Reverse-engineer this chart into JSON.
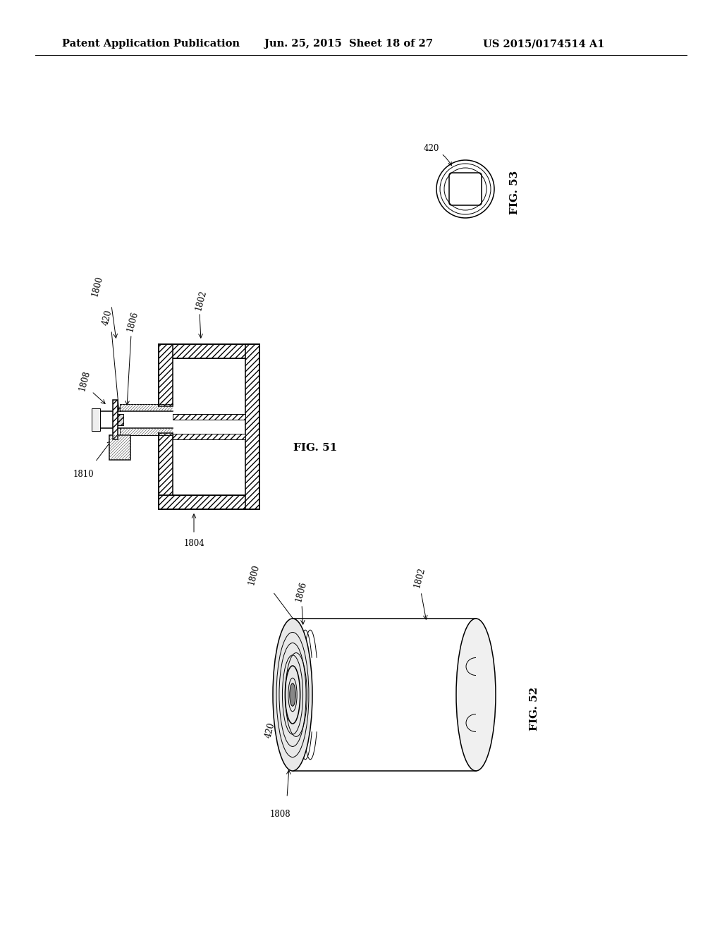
{
  "bg_color": "#ffffff",
  "header_text": "Patent Application Publication",
  "header_date": "Jun. 25, 2015  Sheet 18 of 27",
  "header_patent": "US 2015/0174514 A1",
  "fig51_label": "FIG. 51",
  "fig52_label": "FIG. 52",
  "fig53_label": "FIG. 53",
  "line_color": "#000000",
  "font_size_header": 10.5,
  "font_size_labels": 8.5,
  "font_size_fig": 11
}
